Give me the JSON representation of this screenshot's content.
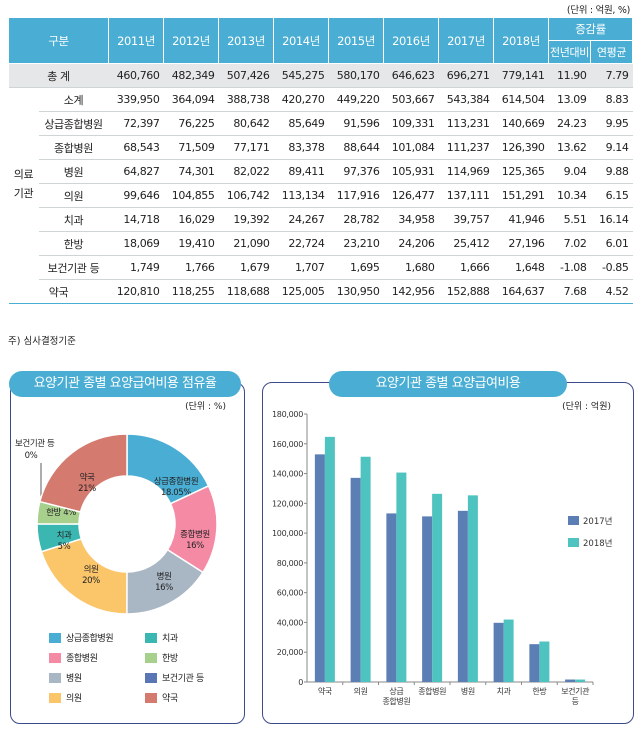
{
  "unit_label": "(단위 : 억원, %)",
  "table": {
    "col_header_label": "구분",
    "years": [
      "2011년",
      "2012년",
      "2013년",
      "2014년",
      "2015년",
      "2016년",
      "2017년",
      "2018년"
    ],
    "rate_header": "증감률",
    "rate_sub": [
      "전년대비",
      "연평균"
    ],
    "group_label_1": "의료",
    "group_label_2": "기관",
    "rows": [
      {
        "label": "총  계",
        "values": [
          "460,760",
          "482,349",
          "507,426",
          "545,275",
          "580,170",
          "646,623",
          "696,271",
          "779,141",
          "11.90",
          "7.79"
        ]
      },
      {
        "label": "소계",
        "values": [
          "339,950",
          "364,094",
          "388,738",
          "420,270",
          "449,220",
          "503,667",
          "543,384",
          "614,504",
          "13.09",
          "8.83"
        ]
      },
      {
        "label": "상급종합병원",
        "values": [
          "72,397",
          "76,225",
          "80,642",
          "85,649",
          "91,596",
          "109,331",
          "113,231",
          "140,669",
          "24.23",
          "9.95"
        ]
      },
      {
        "label": "종합병원",
        "values": [
          "68,543",
          "71,509",
          "77,171",
          "83,378",
          "88,644",
          "101,084",
          "111,237",
          "126,390",
          "13.62",
          "9.14"
        ]
      },
      {
        "label": "병원",
        "values": [
          "64,827",
          "74,301",
          "82,022",
          "89,411",
          "97,376",
          "105,931",
          "114,969",
          "125,365",
          "9.04",
          "9.88"
        ]
      },
      {
        "label": "의원",
        "values": [
          "99,646",
          "104,855",
          "106,742",
          "113,134",
          "117,916",
          "126,477",
          "137,111",
          "151,291",
          "10.34",
          "6.15"
        ]
      },
      {
        "label": "치과",
        "values": [
          "14,718",
          "16,029",
          "19,392",
          "24,267",
          "28,782",
          "34,958",
          "39,757",
          "41,946",
          "5.51",
          "16.14"
        ]
      },
      {
        "label": "한방",
        "values": [
          "18,069",
          "19,410",
          "21,090",
          "22,724",
          "23,210",
          "24,206",
          "25,412",
          "27,196",
          "7.02",
          "6.01"
        ]
      },
      {
        "label": "보건기관 등",
        "values": [
          "1,749",
          "1,766",
          "1,679",
          "1,707",
          "1,695",
          "1,680",
          "1,666",
          "1,648",
          "-1.08",
          "-0.85"
        ]
      },
      {
        "label": "약국",
        "values": [
          "120,810",
          "118,255",
          "118,688",
          "125,005",
          "130,950",
          "142,956",
          "152,888",
          "164,637",
          "7.68",
          "4.52"
        ]
      }
    ]
  },
  "note": "주) 심사결정기준",
  "chart_data": [
    {
      "type": "pie",
      "title": "요양기관 종별 요양급여비용 점유율",
      "unit": "(단위 : %)",
      "slices": [
        {
          "name": "상급종합병원",
          "value": 18.05,
          "label": "18.05%",
          "color": "#4aaed4"
        },
        {
          "name": "종합병원",
          "value": 16,
          "label": "16%",
          "color": "#f48aa4"
        },
        {
          "name": "병원",
          "value": 16,
          "label": "16%",
          "color": "#a9b6c4"
        },
        {
          "name": "의원",
          "value": 20,
          "label": "20%",
          "color": "#fbc56a"
        },
        {
          "name": "치과",
          "value": 5,
          "label": "5%",
          "color": "#3ab7b0"
        },
        {
          "name": "한방",
          "value": 4,
          "label": "4%",
          "color": "#a8d08d"
        },
        {
          "name": "보건기관 등",
          "value": 0,
          "label": "0%",
          "color": "#5a76b4"
        },
        {
          "name": "약국",
          "value": 21,
          "label": "21%",
          "color": "#d47a6e"
        }
      ],
      "legend": [
        "상급종합병원",
        "치과",
        "종합병원",
        "한방",
        "병원",
        "보건기관 등",
        "의원",
        "약국"
      ]
    },
    {
      "type": "bar",
      "title": "요양기관 종별 요양급여비용",
      "unit": "(단위 : 억원)",
      "categories": [
        "약국",
        "의원",
        "상급\n종합병원",
        "종합병원",
        "병원",
        "치과",
        "한방",
        "보건기관\n등"
      ],
      "series": [
        {
          "name": "2017년",
          "color": "#5b7fb4",
          "values": [
            152888,
            137111,
            113231,
            111237,
            114969,
            39757,
            25412,
            1666
          ]
        },
        {
          "name": "2018년",
          "color": "#4fc3bf",
          "values": [
            164637,
            151291,
            140669,
            126390,
            125365,
            41946,
            27196,
            1648
          ]
        }
      ],
      "ylim": [
        0,
        180000
      ],
      "yticks": [
        "0",
        "20,000",
        "40,000",
        "60,000",
        "80,000",
        "100,000",
        "120,000",
        "140,000",
        "160,000",
        "180,000"
      ],
      "grid": false,
      "legend_position": "right"
    }
  ]
}
